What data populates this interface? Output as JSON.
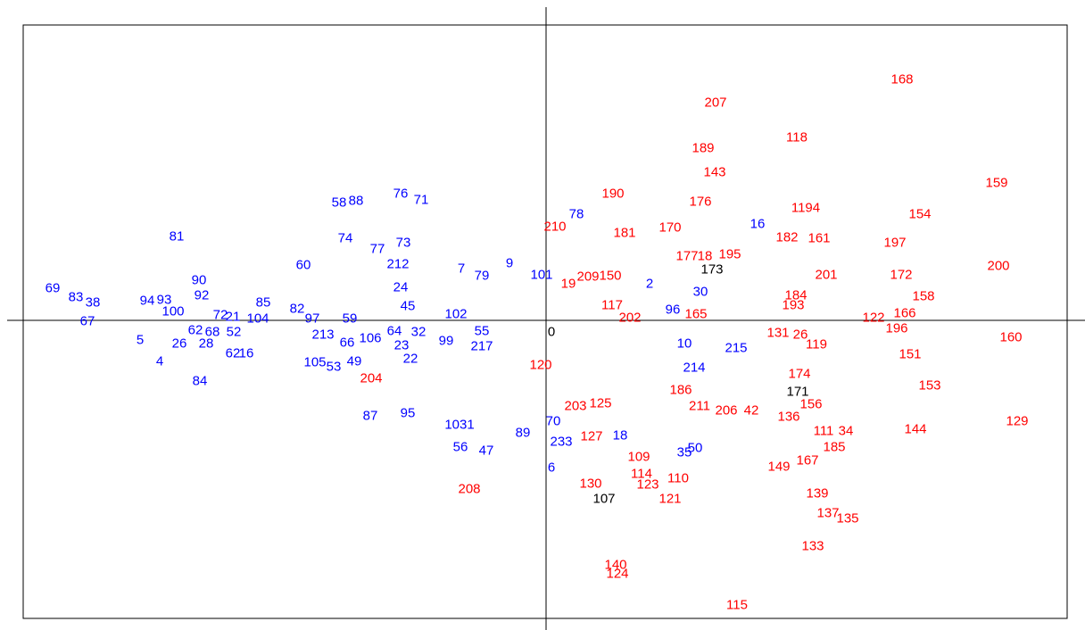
{
  "chart_data": {
    "type": "scatter",
    "xlabel": "",
    "ylabel": "",
    "xlim": [
      -600,
      610
    ],
    "ylim": [
      -358,
      342
    ],
    "grid": false,
    "legend": "none",
    "colors": {
      "blue": "#0000ff",
      "red": "#ff0000",
      "black": "#000000"
    },
    "series": [
      {
        "color": "blue",
        "points": [
          {
            "label": "69",
            "x": -553,
            "y": 36
          },
          {
            "label": "83",
            "x": -527,
            "y": 26
          },
          {
            "label": "38",
            "x": -508,
            "y": 20
          },
          {
            "label": "67",
            "x": -514,
            "y": -1
          },
          {
            "label": "94",
            "x": -447,
            "y": 22
          },
          {
            "label": "93",
            "x": -428,
            "y": 23
          },
          {
            "label": "81",
            "x": -414,
            "y": 94
          },
          {
            "label": "90",
            "x": -389,
            "y": 45
          },
          {
            "label": "92",
            "x": -386,
            "y": 28
          },
          {
            "label": "100",
            "x": -418,
            "y": 10
          },
          {
            "label": "26",
            "x": -411,
            "y": -26
          },
          {
            "label": "28",
            "x": -381,
            "y": -26
          },
          {
            "label": "5",
            "x": -455,
            "y": -22
          },
          {
            "label": "4",
            "x": -433,
            "y": -46
          },
          {
            "label": "84",
            "x": -388,
            "y": -68
          },
          {
            "label": "72",
            "x": -365,
            "y": 6
          },
          {
            "label": "62",
            "x": -393,
            "y": -11
          },
          {
            "label": "68",
            "x": -374,
            "y": -13
          },
          {
            "label": "52",
            "x": -350,
            "y": -13
          },
          {
            "label": "21",
            "x": -351,
            "y": 4
          },
          {
            "label": "104",
            "x": -323,
            "y": 2
          },
          {
            "label": "85",
            "x": -317,
            "y": 20
          },
          {
            "label": "62",
            "x": -351,
            "y": -37
          },
          {
            "label": "16",
            "x": -336,
            "y": -37
          },
          {
            "label": "60",
            "x": -272,
            "y": 62
          },
          {
            "label": "82",
            "x": -279,
            "y": 13
          },
          {
            "label": "97",
            "x": -262,
            "y": 2
          },
          {
            "label": "59",
            "x": -220,
            "y": 2
          },
          {
            "label": "213",
            "x": -250,
            "y": -16
          },
          {
            "label": "66",
            "x": -223,
            "y": -25
          },
          {
            "label": "106",
            "x": -197,
            "y": -20
          },
          {
            "label": "105",
            "x": -259,
            "y": -47
          },
          {
            "label": "53",
            "x": -238,
            "y": -52
          },
          {
            "label": "49",
            "x": -215,
            "y": -46
          },
          {
            "label": "58",
            "x": -232,
            "y": 132
          },
          {
            "label": "88",
            "x": -213,
            "y": 134
          },
          {
            "label": "74",
            "x": -225,
            "y": 92
          },
          {
            "label": "76",
            "x": -163,
            "y": 142
          },
          {
            "label": "71",
            "x": -140,
            "y": 135
          },
          {
            "label": "77",
            "x": -189,
            "y": 80
          },
          {
            "label": "73",
            "x": -160,
            "y": 87
          },
          {
            "label": "212",
            "x": -166,
            "y": 63
          },
          {
            "label": "24",
            "x": -163,
            "y": 37
          },
          {
            "label": "45",
            "x": -155,
            "y": 16
          },
          {
            "label": "64",
            "x": -170,
            "y": -12
          },
          {
            "label": "32",
            "x": -143,
            "y": -13
          },
          {
            "label": "23",
            "x": -162,
            "y": -28
          },
          {
            "label": "22",
            "x": -152,
            "y": -43
          },
          {
            "label": "102",
            "x": -101,
            "y": 7
          },
          {
            "label": "99",
            "x": -112,
            "y": -23
          },
          {
            "label": "55",
            "x": -72,
            "y": -12
          },
          {
            "label": "217",
            "x": -72,
            "y": -29
          },
          {
            "label": "7",
            "x": -95,
            "y": 58
          },
          {
            "label": "79",
            "x": -72,
            "y": 50
          },
          {
            "label": "9",
            "x": -41,
            "y": 64
          },
          {
            "label": "101",
            "x": -5,
            "y": 51
          },
          {
            "label": "78",
            "x": 34,
            "y": 119
          },
          {
            "label": "87",
            "x": -197,
            "y": -107
          },
          {
            "label": "95",
            "x": -155,
            "y": -104
          },
          {
            "label": "1031",
            "x": -97,
            "y": -117
          },
          {
            "label": "56",
            "x": -96,
            "y": -142
          },
          {
            "label": "47",
            "x": -67,
            "y": -146
          },
          {
            "label": "89",
            "x": -26,
            "y": -126
          },
          {
            "label": "70",
            "x": 8,
            "y": -113
          },
          {
            "label": "233",
            "x": 17,
            "y": -136
          },
          {
            "label": "6",
            "x": 6,
            "y": -165
          },
          {
            "label": "18",
            "x": 83,
            "y": -129
          },
          {
            "label": "2",
            "x": 116,
            "y": 41
          },
          {
            "label": "30",
            "x": 173,
            "y": 32
          },
          {
            "label": "96",
            "x": 142,
            "y": 12
          },
          {
            "label": "10",
            "x": 155,
            "y": -26
          },
          {
            "label": "215",
            "x": 213,
            "y": -31
          },
          {
            "label": "214",
            "x": 166,
            "y": -53
          },
          {
            "label": "35",
            "x": 155,
            "y": -148
          },
          {
            "label": "50",
            "x": 167,
            "y": -143
          },
          {
            "label": "16",
            "x": 237,
            "y": 108
          }
        ]
      },
      {
        "color": "red",
        "points": [
          {
            "label": "168",
            "x": 399,
            "y": 270
          },
          {
            "label": "207",
            "x": 190,
            "y": 244
          },
          {
            "label": "118",
            "x": 281,
            "y": 205
          },
          {
            "label": "189",
            "x": 176,
            "y": 193
          },
          {
            "label": "143",
            "x": 189,
            "y": 166
          },
          {
            "label": "159",
            "x": 505,
            "y": 154
          },
          {
            "label": "190",
            "x": 75,
            "y": 142
          },
          {
            "label": "176",
            "x": 173,
            "y": 133
          },
          {
            "label": "1194",
            "x": 291,
            "y": 126
          },
          {
            "label": "154",
            "x": 419,
            "y": 119
          },
          {
            "label": "210",
            "x": 10,
            "y": 105
          },
          {
            "label": "181",
            "x": 88,
            "y": 98
          },
          {
            "label": "170",
            "x": 139,
            "y": 104
          },
          {
            "label": "182",
            "x": 270,
            "y": 93
          },
          {
            "label": "161",
            "x": 306,
            "y": 92
          },
          {
            "label": "197",
            "x": 391,
            "y": 87
          },
          {
            "label": "177",
            "x": 158,
            "y": 72
          },
          {
            "label": "18",
            "x": 178,
            "y": 72
          },
          {
            "label": "195",
            "x": 206,
            "y": 74
          },
          {
            "label": "200",
            "x": 507,
            "y": 61
          },
          {
            "label": "201",
            "x": 314,
            "y": 51
          },
          {
            "label": "172",
            "x": 398,
            "y": 51
          },
          {
            "label": "209",
            "x": 47,
            "y": 49
          },
          {
            "label": "150",
            "x": 72,
            "y": 50
          },
          {
            "label": "19",
            "x": 25,
            "y": 41
          },
          {
            "label": "184",
            "x": 280,
            "y": 28
          },
          {
            "label": "158",
            "x": 423,
            "y": 27
          },
          {
            "label": "193",
            "x": 277,
            "y": 17
          },
          {
            "label": "117",
            "x": 74,
            "y": 17
          },
          {
            "label": "202",
            "x": 94,
            "y": 3
          },
          {
            "label": "165",
            "x": 168,
            "y": 7
          },
          {
            "label": "166",
            "x": 402,
            "y": 8
          },
          {
            "label": "122",
            "x": 367,
            "y": 3
          },
          {
            "label": "196",
            "x": 393,
            "y": -9
          },
          {
            "label": "131",
            "x": 260,
            "y": -14
          },
          {
            "label": "26",
            "x": 285,
            "y": -16
          },
          {
            "label": "119",
            "x": 303,
            "y": -27
          },
          {
            "label": "160",
            "x": 521,
            "y": -19
          },
          {
            "label": "151",
            "x": 408,
            "y": -38
          },
          {
            "label": "120",
            "x": -6,
            "y": -50
          },
          {
            "label": "204",
            "x": -196,
            "y": -65
          },
          {
            "label": "174",
            "x": 284,
            "y": -60
          },
          {
            "label": "153",
            "x": 430,
            "y": -73
          },
          {
            "label": "186",
            "x": 151,
            "y": -78
          },
          {
            "label": "203",
            "x": 33,
            "y": -96
          },
          {
            "label": "125",
            "x": 61,
            "y": -93
          },
          {
            "label": "211",
            "x": 172,
            "y": -96
          },
          {
            "label": "206",
            "x": 202,
            "y": -101
          },
          {
            "label": "42",
            "x": 230,
            "y": -101
          },
          {
            "label": "156",
            "x": 297,
            "y": -94
          },
          {
            "label": "136",
            "x": 272,
            "y": -108
          },
          {
            "label": "129",
            "x": 528,
            "y": -113
          },
          {
            "label": "144",
            "x": 414,
            "y": -122
          },
          {
            "label": "111",
            "x": 311,
            "y": -124
          },
          {
            "label": "34",
            "x": 336,
            "y": -124
          },
          {
            "label": "185",
            "x": 323,
            "y": -142
          },
          {
            "label": "127",
            "x": 51,
            "y": -130
          },
          {
            "label": "149",
            "x": 261,
            "y": -164
          },
          {
            "label": "167",
            "x": 293,
            "y": -157
          },
          {
            "label": "109",
            "x": 104,
            "y": -153
          },
          {
            "label": "114",
            "x": 107,
            "y": -172
          },
          {
            "label": "110",
            "x": 148,
            "y": -177
          },
          {
            "label": "123",
            "x": 114,
            "y": -184
          },
          {
            "label": "130",
            "x": 50,
            "y": -183
          },
          {
            "label": "121",
            "x": 139,
            "y": -200
          },
          {
            "label": "139",
            "x": 304,
            "y": -194
          },
          {
            "label": "137",
            "x": 316,
            "y": -216
          },
          {
            "label": "135",
            "x": 338,
            "y": -222
          },
          {
            "label": "133",
            "x": 299,
            "y": -253
          },
          {
            "label": "208",
            "x": -86,
            "y": -189
          },
          {
            "label": "140",
            "x": 78,
            "y": -274
          },
          {
            "label": "124",
            "x": 80,
            "y": -284
          },
          {
            "label": "115",
            "x": 214,
            "y": -319
          }
        ]
      },
      {
        "color": "black",
        "points": [
          {
            "label": "173",
            "x": 186,
            "y": 57
          },
          {
            "label": "0",
            "x": 6,
            "y": -13
          },
          {
            "label": "171",
            "x": 282,
            "y": -80
          },
          {
            "label": "107",
            "x": 65,
            "y": -200
          }
        ]
      }
    ]
  }
}
